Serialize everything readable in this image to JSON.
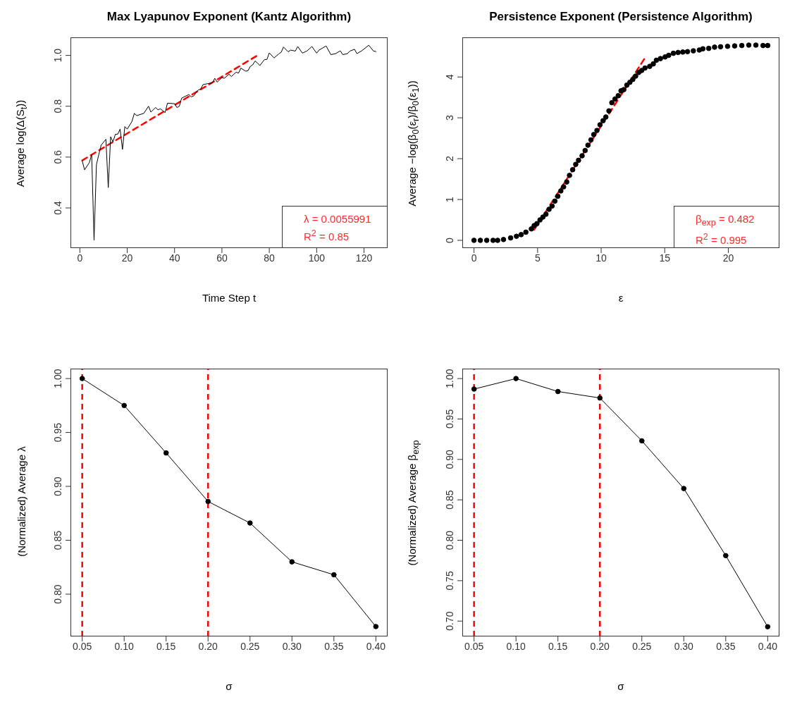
{
  "chart_data": [
    {
      "type": "line",
      "title": "Max Lyapunov Exponent (Kantz Algorithm)",
      "xlabel": "Time Step t",
      "ylabel": "Average log(Δ(S$_{t}$))",
      "series": [
        {
          "color": "#ff0000",
          "line_style": "dashed",
          "x": [
            1,
            75
          ],
          "values": [
            0.587,
            1.0
          ]
        },
        {
          "color": "#000000",
          "x": [
            1,
            2,
            4,
            5,
            6,
            7,
            8,
            9,
            11,
            12,
            13,
            14,
            15,
            16,
            17,
            18,
            19,
            20,
            22,
            23,
            24,
            27,
            29,
            30,
            32,
            33,
            34,
            36,
            37,
            40,
            41,
            42,
            43,
            46,
            47,
            48,
            50,
            51,
            52,
            54,
            56,
            57,
            58,
            60,
            61,
            63,
            64,
            66,
            67,
            68,
            70,
            71,
            72,
            73,
            74,
            75,
            76,
            78,
            79,
            80,
            82,
            84,
            85,
            86,
            88,
            89,
            91,
            92,
            94,
            96,
            98,
            100,
            101,
            104,
            106,
            108,
            110,
            111,
            113,
            114,
            116,
            117,
            119,
            122,
            124,
            125
          ],
          "values": [
            0.585,
            0.55,
            0.578,
            0.61,
            0.273,
            0.57,
            0.61,
            0.647,
            0.67,
            0.48,
            0.68,
            0.66,
            0.69,
            0.69,
            0.71,
            0.63,
            0.72,
            0.71,
            0.74,
            0.772,
            0.763,
            0.772,
            0.8,
            0.777,
            0.795,
            0.786,
            0.79,
            0.775,
            0.812,
            0.81,
            0.795,
            0.8,
            0.832,
            0.846,
            0.837,
            0.84,
            0.864,
            0.867,
            0.885,
            0.889,
            0.892,
            0.91,
            0.895,
            0.913,
            0.91,
            0.926,
            0.917,
            0.934,
            0.93,
            0.95,
            0.938,
            0.94,
            0.957,
            0.963,
            0.978,
            0.97,
            0.96,
            0.984,
            0.984,
            1.01,
            0.99,
            1.006,
            1.012,
            1.033,
            1.014,
            1.021,
            1.017,
            1.035,
            1.009,
            1.018,
            1.035,
            1.009,
            1.021,
            1.037,
            1.003,
            1.007,
            1.018,
            1.003,
            1.007,
            1.017,
            1.024,
            1.007,
            1.018,
            1.04,
            1.017,
            1.015
          ]
        }
      ],
      "xlim": [
        -3.96,
        129.96
      ],
      "xticks": [
        0,
        20,
        40,
        60,
        80,
        100,
        120
      ],
      "ylim": [
        0.242,
        1.071
      ],
      "yticks": [
        0.4,
        0.6,
        0.8,
        {
          "value": 1,
          "label": "1.0"
        }
      ],
      "line_style": "solid",
      "annotations": [
        "λ = 0.0055991",
        "R$^{2}$ = 0.85"
      ]
    },
    {
      "type": "scatter",
      "title": "Persistence Exponent (Persistence Algorithm)",
      "xlabel": "ε",
      "ylabel": "Average −log(β$_{0}$(ε$_{r}$)/β$_{0}$(ε$_{1}$))",
      "marker": "circle",
      "series": [
        {
          "color": "#000000",
          "x": [
            0,
            0.5,
            1,
            1.5,
            1.86,
            2.32,
            2.88,
            3.34,
            3.71,
            4.08,
            4.51,
            4.73,
            4.95,
            5.19,
            5.42,
            5.66,
            5.9,
            6.14,
            6.36,
            6.59,
            6.83,
            7.05,
            7.29,
            7.51,
            7.76,
            8,
            8.22,
            8.5,
            8.74,
            8.96,
            9.2,
            9.42,
            9.67,
            9.91,
            10.15,
            10.37,
            10.61,
            10.84,
            11.09,
            11.34,
            11.56,
            11.78,
            12.02,
            12.26,
            12.49,
            12.71,
            12.95,
            13.19,
            13.45,
            13.82,
            14.1,
            14.34,
            14.66,
            15.03,
            15.31,
            15.68,
            16.05,
            16.42,
            16.79,
            17.25,
            17.72,
            18,
            18.46,
            18.92,
            19.39,
            19.94,
            20.5,
            21.06,
            21.61,
            22.17,
            22.73,
            23.1
          ],
          "values": [
            0,
            0,
            0,
            0,
            0,
            0.02,
            0.06,
            0.1,
            0.14,
            0.2,
            0.28,
            0.36,
            0.41,
            0.5,
            0.57,
            0.64,
            0.76,
            0.84,
            0.96,
            1.08,
            1.21,
            1.31,
            1.43,
            1.59,
            1.73,
            1.86,
            1.96,
            2.07,
            2.2,
            2.33,
            2.46,
            2.59,
            2.69,
            2.83,
            2.93,
            3.02,
            3.17,
            3.37,
            3.46,
            3.54,
            3.66,
            3.69,
            3.8,
            3.87,
            3.94,
            4.02,
            4.11,
            4.16,
            4.22,
            4.26,
            4.32,
            4.41,
            4.45,
            4.49,
            4.53,
            4.58,
            4.6,
            4.61,
            4.62,
            4.64,
            4.66,
            4.69,
            4.7,
            4.73,
            4.74,
            4.75,
            4.76,
            4.77,
            4.78,
            4.78,
            4.77,
            4.77
          ]
        },
        {
          "type": "line",
          "color": "#ff0000",
          "line_style": "dashed",
          "marker": "none",
          "x": [
            4.73,
            13.41
          ],
          "values": [
            0.26,
            4.45
          ]
        }
      ],
      "xlim": [
        -0.92,
        24.02
      ],
      "xticks": [
        0,
        5,
        10,
        15,
        20
      ],
      "ylim": [
        -0.19,
        4.97
      ],
      "yticks": [
        0,
        1,
        2,
        3,
        4
      ],
      "annotations": [
        "β$_{exp}$ = 0.482",
        "R$^{2}$ = 0.995"
      ]
    },
    {
      "type": "line",
      "xlabel": "σ",
      "ylabel": "(Normalized) Average λ",
      "marker": "circle",
      "line_style": "solid",
      "x": [
        0.05,
        0.1,
        0.15,
        0.2,
        0.25,
        0.3,
        0.35,
        0.4
      ],
      "series": [
        {
          "color": "#000000",
          "values": [
            1.0,
            0.975,
            0.931,
            0.886,
            0.866,
            0.83,
            0.818,
            0.77
          ]
        }
      ],
      "xlim": [
        0.036,
        0.414
      ],
      "xticks": [
        0.05,
        {
          "value": 0.1,
          "label": "0.10"
        },
        0.15,
        {
          "value": 0.2,
          "label": "0.20"
        },
        0.25,
        {
          "value": 0.3,
          "label": "0.30"
        },
        0.35,
        {
          "value": 0.4,
          "label": "0.40"
        }
      ],
      "ylim": [
        0.7608,
        1.0092
      ],
      "yticks": [
        {
          "value": 0.8,
          "label": "0.80"
        },
        0.85,
        {
          "value": 0.9,
          "label": "0.90"
        },
        0.95,
        {
          "value": 1,
          "label": "1.00"
        }
      ],
      "ref_lines": [
        {
          "axis": "x",
          "value": 0.05,
          "color": "#ff0000",
          "line_style": "dashed"
        },
        {
          "axis": "x",
          "value": 0.2,
          "color": "#ff0000",
          "line_style": "dashed"
        }
      ]
    },
    {
      "type": "line",
      "xlabel": "σ",
      "ylabel": "(Normalized) Average β$_{exp}$",
      "marker": "circle",
      "line_style": "solid",
      "x": [
        0.05,
        0.1,
        0.15,
        0.2,
        0.25,
        0.3,
        0.35,
        0.4
      ],
      "series": [
        {
          "color": "#000000",
          "values": [
            0.987,
            1.0,
            0.984,
            0.976,
            0.923,
            0.864,
            0.781,
            0.693
          ]
        }
      ],
      "xlim": [
        0.036,
        0.414
      ],
      "xticks": [
        0.05,
        {
          "value": 0.1,
          "label": "0.10"
        },
        0.15,
        {
          "value": 0.2,
          "label": "0.20"
        },
        0.25,
        {
          "value": 0.3,
          "label": "0.30"
        },
        0.35,
        {
          "value": 0.4,
          "label": "0.40"
        }
      ],
      "ylim": [
        0.681,
        1.0123
      ],
      "yticks": [
        {
          "value": 0.7,
          "label": "0.70"
        },
        0.75,
        {
          "value": 0.8,
          "label": "0.80"
        },
        0.85,
        {
          "value": 0.9,
          "label": "0.90"
        },
        0.95,
        {
          "value": 1,
          "label": "1.00"
        }
      ],
      "ref_lines": [
        {
          "axis": "x",
          "value": 0.05,
          "color": "#ff0000",
          "line_style": "dashed"
        },
        {
          "axis": "x",
          "value": 0.2,
          "color": "#ff0000",
          "line_style": "dashed"
        }
      ]
    }
  ]
}
